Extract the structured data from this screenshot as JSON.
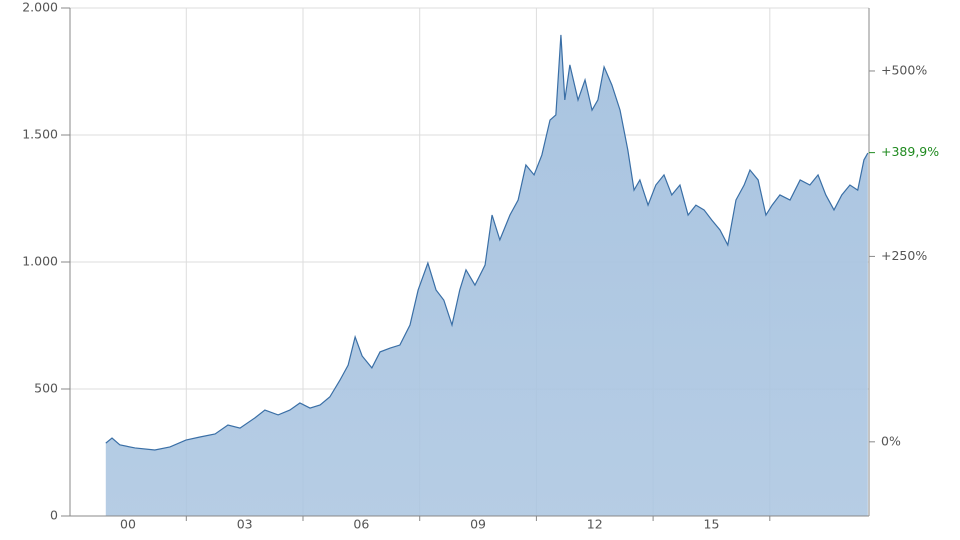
{
  "chart_data": {
    "type": "area",
    "x": [
      1999.43,
      1999.59,
      1999.79,
      2000.18,
      2000.69,
      2001.08,
      2001.49,
      2001.85,
      2002.24,
      2002.57,
      2002.88,
      2003.26,
      2003.52,
      2003.86,
      2004.16,
      2004.42,
      2004.68,
      2004.94,
      2005.19,
      2005.45,
      2005.66,
      2005.84,
      2006.02,
      2006.27,
      2006.48,
      2006.74,
      2006.99,
      2007.25,
      2007.46,
      2007.71,
      2007.92,
      2008.12,
      2008.33,
      2008.53,
      2008.69,
      2008.92,
      2009.18,
      2009.36,
      2009.56,
      2009.82,
      2010.03,
      2010.23,
      2010.44,
      2010.64,
      2010.85,
      2011.0,
      2011.13,
      2011.23,
      2011.36,
      2011.57,
      2011.75,
      2011.93,
      2012.08,
      2012.24,
      2012.44,
      2012.65,
      2012.85,
      2013.01,
      2013.16,
      2013.37,
      2013.57,
      2013.78,
      2013.98,
      2014.19,
      2014.4,
      2014.6,
      2014.81,
      2015.01,
      2015.22,
      2015.42,
      2015.63,
      2015.84,
      2015.99,
      2016.2,
      2016.4,
      2016.56,
      2016.76,
      2017.02,
      2017.28,
      2017.53,
      2017.74,
      2017.94,
      2018.15,
      2018.35,
      2018.56,
      2018.76,
      2018.92,
      2019.02
    ],
    "values": [
      287,
      307,
      280,
      268,
      260,
      272,
      299,
      311,
      323,
      358,
      346,
      386,
      417,
      398,
      417,
      445,
      425,
      437,
      469,
      535,
      594,
      705,
      630,
      583,
      646,
      661,
      673,
      752,
      890,
      996,
      890,
      850,
      752,
      890,
      969,
      909,
      988,
      1185,
      1087,
      1185,
      1244,
      1382,
      1343,
      1421,
      1559,
      1579,
      1894,
      1638,
      1776,
      1638,
      1717,
      1598,
      1638,
      1768,
      1697,
      1598,
      1441,
      1283,
      1323,
      1224,
      1303,
      1343,
      1264,
      1303,
      1185,
      1224,
      1205,
      1165,
      1126,
      1067,
      1244,
      1303,
      1362,
      1323,
      1185,
      1224,
      1264,
      1244,
      1323,
      1303,
      1343,
      1264,
      1205,
      1264,
      1303,
      1283,
      1402,
      1429
    ],
    "color": "#3a6fa6",
    "fill": "#a9c4e0",
    "xlim": [
      1998.51,
      2019.05
    ],
    "xticks": [
      {
        "value": 2000,
        "label": "00"
      },
      {
        "value": 2003,
        "label": "03"
      },
      {
        "value": 2006,
        "label": "06"
      },
      {
        "value": 2009,
        "label": "09"
      },
      {
        "value": 2012,
        "label": "12"
      },
      {
        "value": 2015,
        "label": "15"
      }
    ],
    "xgrid": [
      2001.5,
      2004.5,
      2007.5,
      2010.5,
      2013.5,
      2016.5
    ],
    "ylim": [
      0,
      2000
    ],
    "yticks": [
      0,
      500,
      {
        "value": 1000,
        "label": "1.000"
      },
      {
        "value": 1500,
        "label": "1.500"
      },
      {
        "value": 2000,
        "label": "2.000"
      }
    ],
    "y2lim": [
      -100,
      584.9
    ],
    "y2ticks": [
      {
        "value": 0,
        "label": "0%"
      },
      {
        "value": 250,
        "label": "+250%"
      },
      {
        "value": 500,
        "label": "+500%"
      }
    ],
    "current": {
      "value": 389.9,
      "label": "+389,9%",
      "color": "#1f8a1f"
    },
    "grid": true
  }
}
